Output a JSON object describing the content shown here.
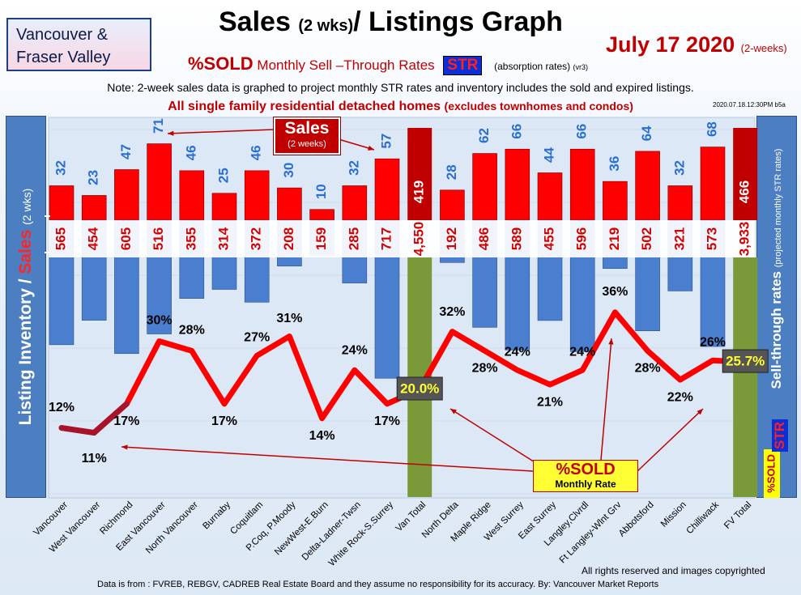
{
  "region": [
    "Vancouver &",
    "Fraser Valley"
  ],
  "title": {
    "main_a": "Sales ",
    "main_small": "(2 wks)",
    "main_b": "/ Listings Graph"
  },
  "date": {
    "main": "July 17  2020",
    "small": "(2-weeks)"
  },
  "subtitle": {
    "sold": "%SOLD",
    "rest": "Monthly Sell –Through Rates",
    "str": "STR",
    "absorption": "(absorption rates)",
    "version": "(vr3)"
  },
  "note": "Note: 2-week sales data is graphed to project monthly STR rates and inventory includes the sold and expired listings.",
  "homes": {
    "main": "All single family residential detached homes",
    "paren": "(excludes townhomes and condos)"
  },
  "stamp": "2020.07.18.12:30PM b5a",
  "left_label": {
    "a": "Listing Inventory / ",
    "b": "Sales",
    "c": "(2  wks)"
  },
  "right_label": {
    "a": "Sell-through rates",
    "b": "(projected monthly STR rates)"
  },
  "right_badges": {
    "str": "STR",
    "sold": "%SOLD"
  },
  "sales_callout": {
    "t1": "Sales",
    "t2": "(2 weeks)"
  },
  "sold_callout": {
    "t1": "%SOLD",
    "t2": "Monthly Rate"
  },
  "footer": "Data is from : FVREB, REBGV, CADREB Real Estate Board and they assume no responsibility for its accuracy. By: Vancouver Market Reports",
  "rights": "All rights reserved and  images copyrighted",
  "chart_data": {
    "type": "bar",
    "categories": [
      "Vancouver",
      "West Vancouver",
      "Richmond",
      "East Vancouver",
      "North Vancouver",
      "Burnaby",
      "Coquitlam",
      "P.Coq, P.Moody",
      "NewWest-E.Burn",
      "Delta-Ladner-Twsn",
      "White Rock-S.Surrey",
      "Van Total",
      "North Delta",
      "Maple Ridge",
      "West Surrey",
      "East Surrey",
      "Langley,Clvrdl",
      "Ft Langley-Wlnt Grv",
      "Abbotsford",
      "Mission",
      "Chilliwack",
      "FV Total"
    ],
    "series": [
      {
        "values": [
          32,
          23,
          47,
          71,
          46,
          25,
          46,
          30,
          10,
          32,
          57,
          419,
          28,
          62,
          66,
          44,
          66,
          36,
          64,
          32,
          68,
          466
        ]
      },
      {
        "values": [
          565,
          454,
          605,
          516,
          355,
          314,
          372,
          208,
          159,
          285,
          717,
          4550,
          192,
          486,
          589,
          455,
          596,
          219,
          502,
          321,
          573,
          3933
        ]
      },
      {
        "values": [
          12,
          11,
          17,
          30,
          28,
          17,
          27,
          31,
          14,
          24,
          17,
          20.0,
          32,
          28,
          24,
          21,
          24,
          36,
          28,
          22,
          26,
          25.7
        ]
      }
    ],
    "labels": {
      "sales": [
        "32",
        "23",
        "47",
        "71",
        "46",
        "25",
        "46",
        "30",
        "10",
        "32",
        "57",
        "419",
        "28",
        "62",
        "66",
        "44",
        "66",
        "36",
        "64",
        "32",
        "68",
        "466"
      ],
      "inventory": [
        "565",
        "454",
        "605",
        "516",
        "355",
        "314",
        "372",
        "208",
        "159",
        "285",
        "717",
        "4,550",
        "192",
        "486",
        "589",
        "455",
        "596",
        "219",
        "502",
        "321",
        "573",
        "3,933"
      ],
      "pct": [
        "12%",
        "11%",
        "17%",
        "30%",
        "28%",
        "17%",
        "27%",
        "31%",
        "14%",
        "24%",
        "17%",
        "20.0%",
        "32%",
        "28%",
        "24%",
        "21%",
        "24%",
        "36%",
        "28%",
        "22%",
        "26%",
        "25.7%"
      ]
    },
    "total_indices": [
      11,
      21
    ],
    "colors": {
      "sales": "#ff0000",
      "inventory": "#4a7fcf",
      "total_sales": "#c00000",
      "total_inventory": "#7a9a3a",
      "line": "#ff0000",
      "line_dark": "#8a1a3a",
      "pct_total_box": "#555555",
      "pct_total_text": "#ffff33"
    }
  }
}
